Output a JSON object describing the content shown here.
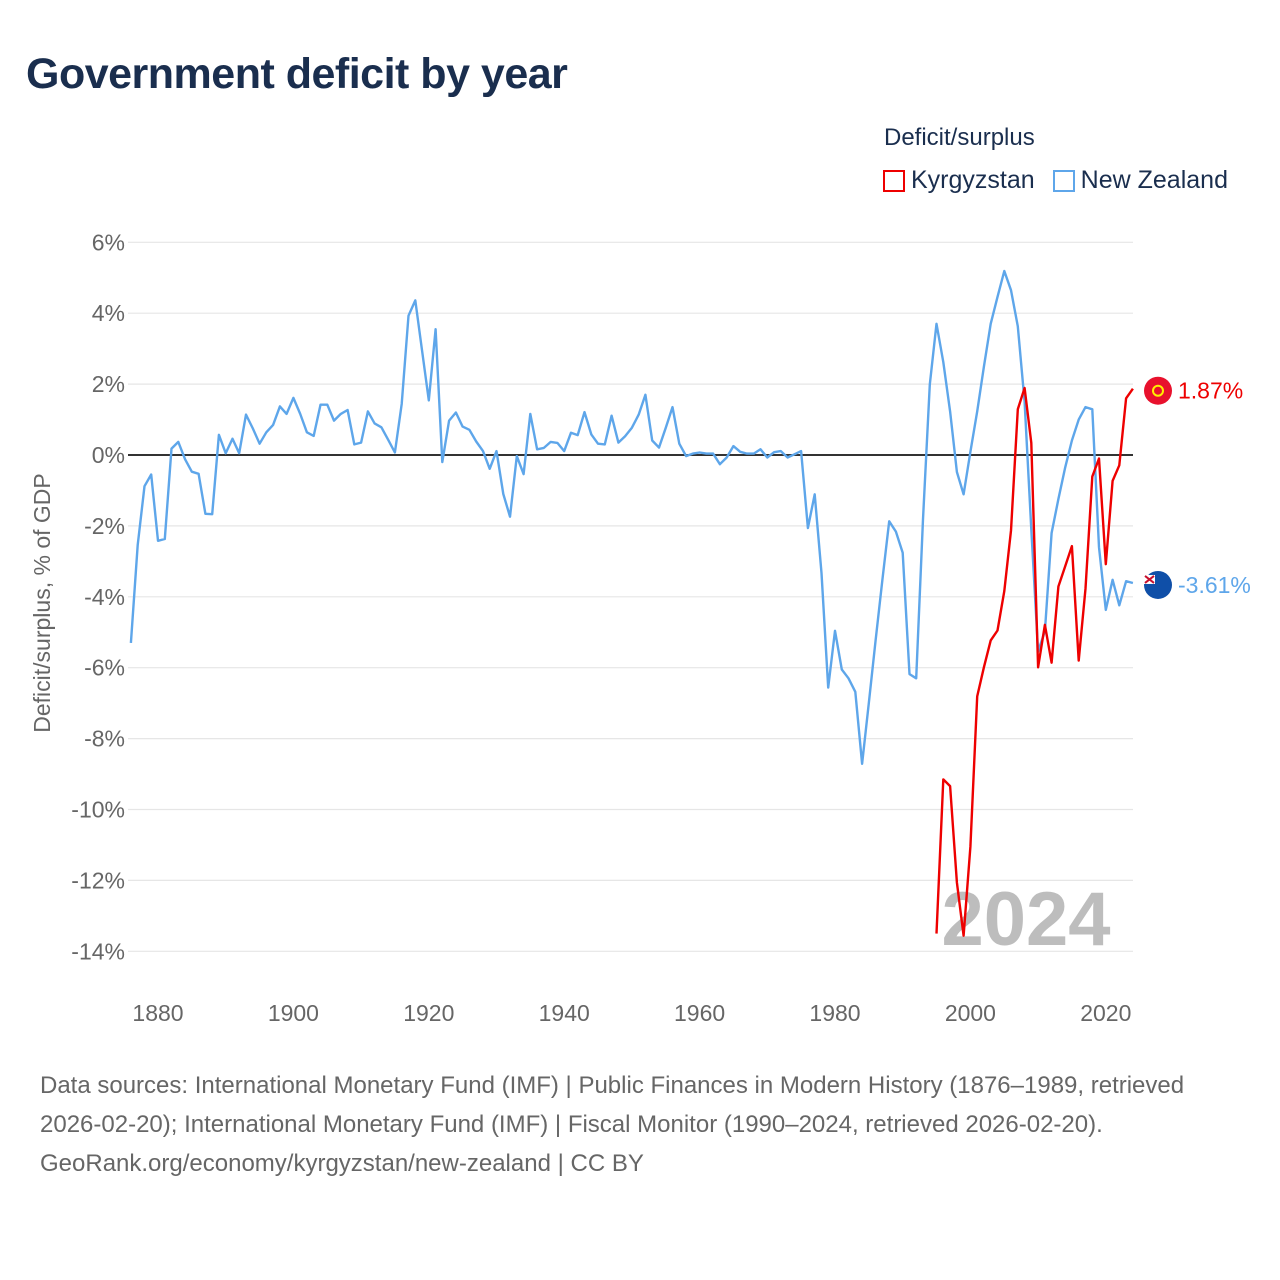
{
  "title": "Government deficit by year",
  "legend": {
    "title": "Deficit/surplus",
    "items": [
      {
        "label": "Kyrgyzstan",
        "color": "#ee0000"
      },
      {
        "label": "New Zealand",
        "color": "#5ea6ea"
      }
    ]
  },
  "footer": {
    "sources": "Data sources: International Monetary Fund (IMF) | Public Finances in Modern History (1876–1989, retrieved 2026-02-20); International Monetary Fund (IMF) | Fiscal Monitor (1990–2024, retrieved 2026-02-20).",
    "credit": "GeoRank.org/economy/kyrgyzstan/new-zealand | CC BY"
  },
  "chart_data": {
    "type": "line",
    "title": "Government deficit by year",
    "xlabel": "",
    "ylabel": "Deficit/surplus, % of GDP",
    "xlim": [
      1876,
      2024
    ],
    "ylim": [
      -15,
      6
    ],
    "grid": true,
    "legend_position": "top-right",
    "year_watermark": "2024",
    "x_ticks": [
      1880,
      1900,
      1920,
      1940,
      1960,
      1980,
      2000,
      2020
    ],
    "y_ticks": [
      6,
      4,
      2,
      0,
      -2,
      -4,
      -6,
      -8,
      -10,
      -12,
      -14
    ],
    "y_tick_labels": [
      "6%",
      "4%",
      "2%",
      "0%",
      "-2%",
      "-4%",
      "-6%",
      "-8%",
      "-10%",
      "-12%",
      "-14%"
    ],
    "series": [
      {
        "name": "Kyrgyzstan",
        "color": "#ee0000",
        "end_label": "1.87%",
        "start_year": 1995,
        "values": [
          -13.5,
          -9.15,
          -9.34,
          -12.06,
          -13.56,
          -11.05,
          -6.81,
          -5.99,
          -5.23,
          -4.95,
          -3.84,
          -2.13,
          1.29,
          1.89,
          0.34,
          -5.99,
          -4.79,
          -5.86,
          -3.71,
          -3.14,
          -2.57,
          -5.8,
          -3.77,
          -0.61,
          -0.1,
          -3.08,
          -0.73,
          -0.29,
          1.6,
          1.87
        ]
      },
      {
        "name": "New Zealand",
        "color": "#5ea6ea",
        "end_label": "-3.61%",
        "start_year": 1876,
        "values": [
          -5.3,
          -2.54,
          -0.88,
          -0.55,
          -2.42,
          -2.37,
          0.18,
          0.37,
          -0.12,
          -0.47,
          -0.53,
          -1.66,
          -1.67,
          0.57,
          0.05,
          0.46,
          0.05,
          1.14,
          0.75,
          0.32,
          0.64,
          0.85,
          1.37,
          1.16,
          1.61,
          1.16,
          0.64,
          0.54,
          1.42,
          1.42,
          0.97,
          1.16,
          1.27,
          0.3,
          0.35,
          1.23,
          0.89,
          0.78,
          0.43,
          0.07,
          1.44,
          3.93,
          4.36,
          2.96,
          1.54,
          3.55,
          -0.2,
          0.97,
          1.2,
          0.8,
          0.71,
          0.38,
          0.11,
          -0.39,
          0.11,
          -1.1,
          -1.74,
          -0.03,
          -0.54,
          1.16,
          0.16,
          0.2,
          0.37,
          0.34,
          0.11,
          0.63,
          0.56,
          1.21,
          0.58,
          0.32,
          0.3,
          1.11,
          0.35,
          0.53,
          0.77,
          1.14,
          1.7,
          0.41,
          0.21,
          0.77,
          1.35,
          0.32,
          -0.03,
          0.04,
          0.07,
          0.04,
          0.04,
          -0.26,
          -0.07,
          0.25,
          0.09,
          0.04,
          0.04,
          0.16,
          -0.07,
          0.08,
          0.11,
          -0.07,
          0.02,
          0.11,
          -2.06,
          -1.11,
          -3.33,
          -6.56,
          -4.96,
          -6.05,
          -6.3,
          -6.68,
          -8.71,
          -7.0,
          -5.23,
          -3.52,
          -1.87,
          -2.16,
          -2.76,
          -6.18,
          -6.3,
          -1.81,
          1.99,
          3.7,
          2.62,
          1.23,
          -0.48,
          -1.11,
          0.09,
          1.23,
          2.49,
          3.7,
          4.46,
          5.19,
          4.65,
          3.63,
          1.5,
          -2.1,
          -5.54,
          -4.97,
          -2.2,
          -1.24,
          -0.35,
          0.41,
          1.0,
          1.35,
          1.29,
          -2.6,
          -4.37,
          -3.52,
          -4.24,
          -3.56,
          -3.61
        ]
      }
    ]
  }
}
